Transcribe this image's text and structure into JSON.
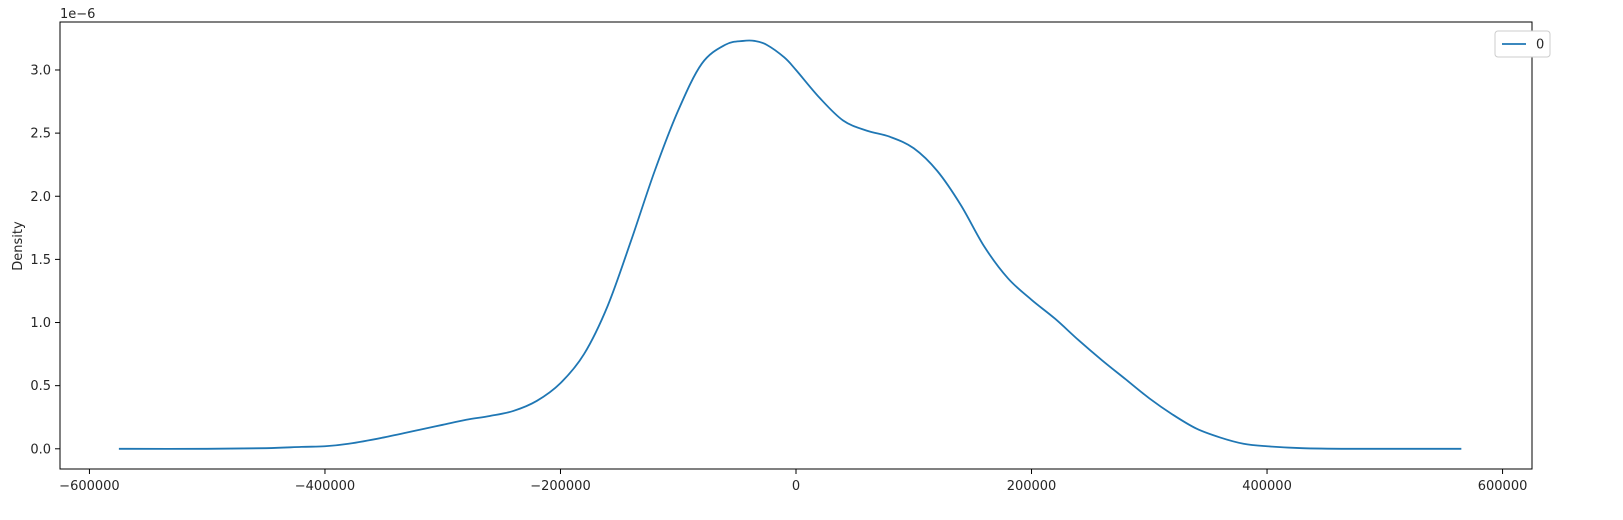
{
  "chart_data": {
    "type": "line",
    "title": "",
    "xlabel": "",
    "ylabel": "Density",
    "y_scale_label": "1e−6",
    "xlim": [
      -625000,
      625000
    ],
    "ylim": [
      -0.16,
      3.38
    ],
    "x_ticks": [
      -600000,
      -400000,
      -200000,
      0,
      200000,
      400000,
      600000
    ],
    "x_tick_labels": [
      "−600000",
      "−400000",
      "−200000",
      "0",
      "200000",
      "400000",
      "600000"
    ],
    "y_ticks": [
      0.0,
      0.5,
      1.0,
      1.5,
      2.0,
      2.5,
      3.0
    ],
    "y_tick_labels": [
      "0.0",
      "0.5",
      "1.0",
      "1.5",
      "2.0",
      "2.5",
      "3.0"
    ],
    "grid": false,
    "legend_position": "top-right",
    "series": [
      {
        "name": "0",
        "color": "#1f77b4",
        "x": [
          -575000,
          -500000,
          -450000,
          -420000,
          -400000,
          -380000,
          -350000,
          -320000,
          -300000,
          -280000,
          -260000,
          -240000,
          -220000,
          -200000,
          -180000,
          -160000,
          -140000,
          -120000,
          -100000,
          -80000,
          -60000,
          -45000,
          -35000,
          -25000,
          -10000,
          0,
          20000,
          40000,
          60000,
          80000,
          100000,
          120000,
          140000,
          160000,
          180000,
          200000,
          220000,
          240000,
          260000,
          280000,
          300000,
          320000,
          340000,
          360000,
          380000,
          400000,
          430000,
          470000,
          520000,
          565000
        ],
        "y": [
          0.0,
          0.0,
          0.005,
          0.015,
          0.02,
          0.04,
          0.09,
          0.15,
          0.19,
          0.23,
          0.26,
          0.3,
          0.38,
          0.52,
          0.75,
          1.13,
          1.65,
          2.2,
          2.68,
          3.05,
          3.2,
          3.23,
          3.23,
          3.2,
          3.1,
          3.0,
          2.78,
          2.6,
          2.52,
          2.47,
          2.38,
          2.2,
          1.93,
          1.6,
          1.35,
          1.18,
          1.03,
          0.86,
          0.7,
          0.55,
          0.4,
          0.27,
          0.16,
          0.09,
          0.04,
          0.02,
          0.005,
          0.0,
          0.0,
          0.0
        ]
      }
    ]
  }
}
